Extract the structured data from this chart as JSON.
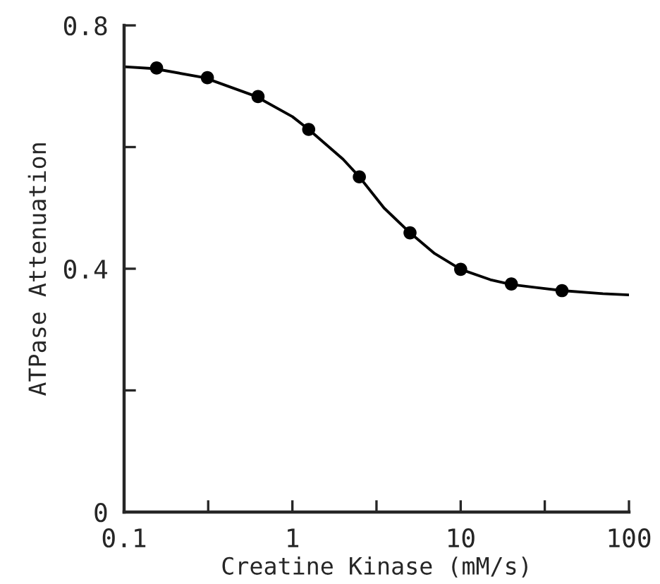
{
  "chart_data": {
    "type": "scatter",
    "xlabel": "Creatine Kinase (mM/s)",
    "ylabel": "ATPase Attenuation",
    "log": "x",
    "xlim": [
      0.1,
      100
    ],
    "ylim": [
      0,
      0.8
    ],
    "xticks": [
      0.1,
      {
        "value": 0.316,
        "label": null
      },
      1,
      {
        "value": 3.16,
        "label": null
      },
      10,
      {
        "value": 31.6,
        "label": null
      },
      100
    ],
    "yticks": [
      0,
      {
        "value": 0.2,
        "label": null
      },
      0.4,
      {
        "value": 0.6,
        "label": null
      },
      0.8
    ],
    "grid": false,
    "legend": false,
    "series": [
      {
        "color": "#000000",
        "marker": "circle",
        "x": [
          0.156,
          0.3125,
          0.625,
          1.25,
          2.5,
          5,
          10,
          20,
          40
        ],
        "values": [
          0.73,
          0.714,
          0.683,
          0.629,
          0.551,
          0.459,
          0.399,
          0.375,
          0.364
        ]
      },
      {
        "type": "line",
        "color": "#000000",
        "marker": "none",
        "line_style": "solid",
        "x": [
          0.1,
          0.15,
          0.3,
          0.6,
          1,
          1.25,
          2,
          2.5,
          3.5,
          5,
          7,
          10,
          15,
          20,
          40,
          70,
          100
        ],
        "values": [
          0.732,
          0.729,
          0.714,
          0.684,
          0.65,
          0.629,
          0.58,
          0.551,
          0.5,
          0.459,
          0.425,
          0.399,
          0.382,
          0.374,
          0.364,
          0.359,
          0.357
        ]
      }
    ]
  }
}
